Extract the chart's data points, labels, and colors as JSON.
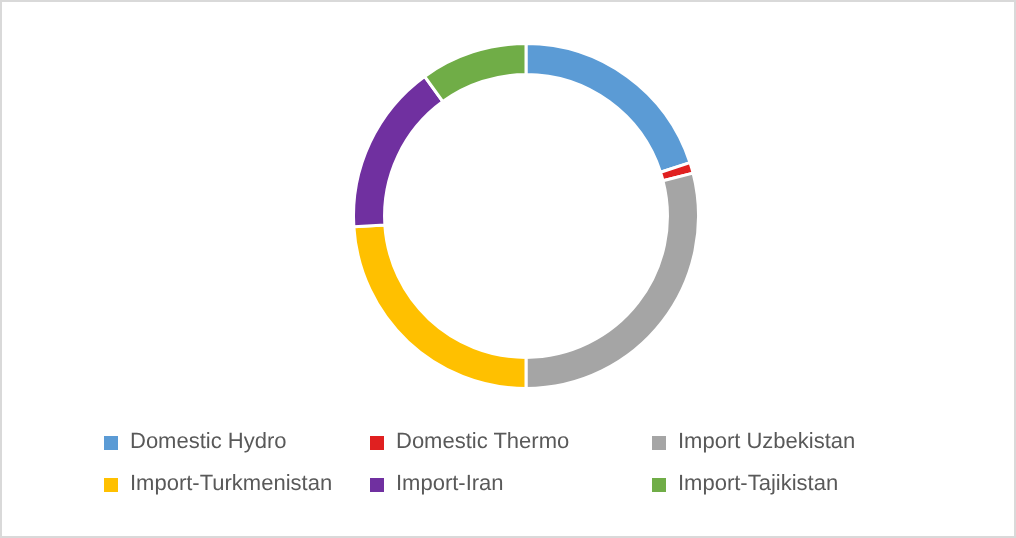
{
  "chart_data": {
    "type": "donut",
    "categories": [
      "Domestic Hydro",
      "Domestic Thermo",
      "Import Uzbekistan",
      "Import-Turkmenistan",
      "Import-Iran",
      "Import-Tajikistan"
    ],
    "values": [
      20,
      1,
      29,
      24,
      16,
      10
    ],
    "colors": [
      "#5b9bd5",
      "#e02020",
      "#a5a5a5",
      "#ffc000",
      "#7030a0",
      "#70ad47"
    ],
    "legend": "bottom"
  }
}
